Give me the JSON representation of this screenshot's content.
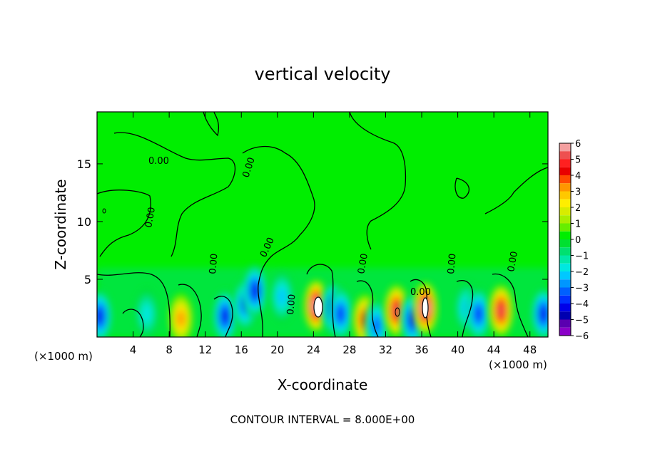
{
  "chart_data": {
    "type": "heatmap",
    "title": "vertical velocity",
    "xlabel": "X-coordinate",
    "ylabel": "Z-coordinate",
    "x_unit_left": "(×1000 m)",
    "x_unit_right": "(×1000 m)",
    "xlim": [
      0,
      50
    ],
    "ylim": [
      0,
      19.5
    ],
    "x_ticks": [
      4,
      8,
      12,
      16,
      20,
      24,
      28,
      32,
      36,
      40,
      44,
      48
    ],
    "y_ticks": [
      5,
      10,
      15
    ],
    "contour_interval_text": "CONTOUR INTERVAL = 8.000E+00",
    "contour_label": "0.00",
    "colorbar": {
      "min": -6,
      "max": 6,
      "ticks": [
        "6",
        "5",
        "4",
        "3",
        "2",
        "1",
        "0",
        "−1",
        "−2",
        "−3",
        "−4",
        "−5",
        "−6"
      ],
      "levels": [
        {
          "from": 5.5,
          "to": 6,
          "color": "#f4a0a0"
        },
        {
          "from": 5,
          "to": 5.5,
          "color": "#ee5050"
        },
        {
          "from": 4.5,
          "to": 5,
          "color": "#ff2020"
        },
        {
          "from": 4,
          "to": 4.5,
          "color": "#e80000"
        },
        {
          "from": 3.5,
          "to": 4,
          "color": "#ff4a00"
        },
        {
          "from": 3,
          "to": 3.5,
          "color": "#ff9600"
        },
        {
          "from": 2.5,
          "to": 3,
          "color": "#ffc800"
        },
        {
          "from": 2,
          "to": 2.5,
          "color": "#ffee00"
        },
        {
          "from": 1.5,
          "to": 2,
          "color": "#d8ec00"
        },
        {
          "from": 1,
          "to": 1.5,
          "color": "#aaee00"
        },
        {
          "from": 0.5,
          "to": 1,
          "color": "#66ee00"
        },
        {
          "from": 0,
          "to": 0.5,
          "color": "#00ee00"
        },
        {
          "from": -0.5,
          "to": 0,
          "color": "#00e030"
        },
        {
          "from": -1,
          "to": -0.5,
          "color": "#00e070"
        },
        {
          "from": -1.5,
          "to": -1,
          "color": "#00e8a8"
        },
        {
          "from": -2,
          "to": -1.5,
          "color": "#00e8e0"
        },
        {
          "from": -2.5,
          "to": -2,
          "color": "#00c8ff"
        },
        {
          "from": -3,
          "to": -2.5,
          "color": "#0096ff"
        },
        {
          "from": -3.5,
          "to": -3,
          "color": "#0060ff"
        },
        {
          "from": -4,
          "to": -3.5,
          "color": "#0030ff"
        },
        {
          "from": -4.5,
          "to": -4,
          "color": "#0000e8"
        },
        {
          "from": -5,
          "to": -4.5,
          "color": "#0000b0"
        },
        {
          "from": -5.5,
          "to": -5,
          "color": "#5a00b0"
        },
        {
          "from": -6,
          "to": -5.5,
          "color": "#8a00c8"
        }
      ]
    },
    "features": [
      {
        "x": 0.3,
        "z": 1.8,
        "w": -4.0
      },
      {
        "x": 5.5,
        "z": 2.0,
        "w": -1.5
      },
      {
        "x": 9.3,
        "z": 1.6,
        "w": 3.2
      },
      {
        "x": 14.2,
        "z": 1.8,
        "w": -4.2
      },
      {
        "x": 16.4,
        "z": 2.8,
        "w": -3.0
      },
      {
        "x": 17.5,
        "z": 4.0,
        "w": -4.0
      },
      {
        "x": 20.5,
        "z": 3.5,
        "w": -2.0
      },
      {
        "x": 24.3,
        "z": 2.7,
        "w": 6.0
      },
      {
        "x": 26.2,
        "z": 2.5,
        "w": -4.0
      },
      {
        "x": 27.0,
        "z": 2.0,
        "w": -3.5
      },
      {
        "x": 29.7,
        "z": 1.5,
        "w": 4.0
      },
      {
        "x": 31.0,
        "z": 1.0,
        "w": -3.0
      },
      {
        "x": 33.2,
        "z": 2.3,
        "w": 5.0
      },
      {
        "x": 35.0,
        "z": 1.5,
        "w": -4.0
      },
      {
        "x": 36.4,
        "z": 2.5,
        "w": 6.0
      },
      {
        "x": 41.0,
        "z": 2.5,
        "w": -2.0
      },
      {
        "x": 42.3,
        "z": 2.0,
        "w": -3.5
      },
      {
        "x": 44.8,
        "z": 2.3,
        "w": 5.0
      },
      {
        "x": 49.5,
        "z": 2.0,
        "w": -4.0
      }
    ]
  }
}
